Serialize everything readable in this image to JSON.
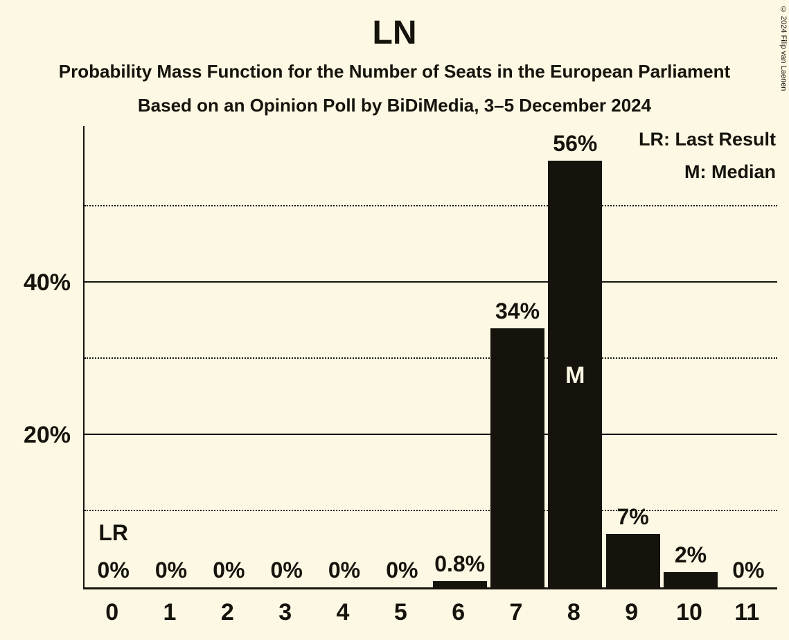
{
  "title": "LN",
  "subtitle": "Probability Mass Function for the Number of Seats in the European Parliament",
  "source_line": "Based on an Opinion Poll by BiDiMedia, 3–5 December 2024",
  "legend": {
    "last_result": "LR: Last Result",
    "median": "M: Median"
  },
  "copyright": "© 2024 Filip van Laenen",
  "colors": {
    "background": "#FCF8E3",
    "ink": "#15130C",
    "bar": "#15130C"
  },
  "chart_data": {
    "type": "bar",
    "title": "LN",
    "categories": [
      "0",
      "1",
      "2",
      "3",
      "4",
      "5",
      "6",
      "7",
      "8",
      "9",
      "10",
      "11"
    ],
    "values": [
      0,
      0,
      0,
      0,
      0,
      0,
      0.8,
      34,
      56,
      7,
      2,
      0
    ],
    "bar_labels": [
      "0%",
      "0%",
      "0%",
      "0%",
      "0%",
      "0%",
      "0.8%",
      "34%",
      "56%",
      "7%",
      "2%",
      "0%"
    ],
    "xlabel": "",
    "ylabel": "",
    "ylim": [
      0,
      60.5
    ],
    "yticks": [
      {
        "value": 20,
        "label": "20%"
      },
      {
        "value": 40,
        "label": "40%"
      }
    ],
    "solid_gridlines": [
      20,
      40
    ],
    "dotted_gridlines": [
      10,
      30,
      50
    ],
    "median_index": 8,
    "median_label": "M",
    "last_result_index": 0,
    "last_result_label": "LR",
    "legend_position": "top-right",
    "grid": "horizontal"
  }
}
